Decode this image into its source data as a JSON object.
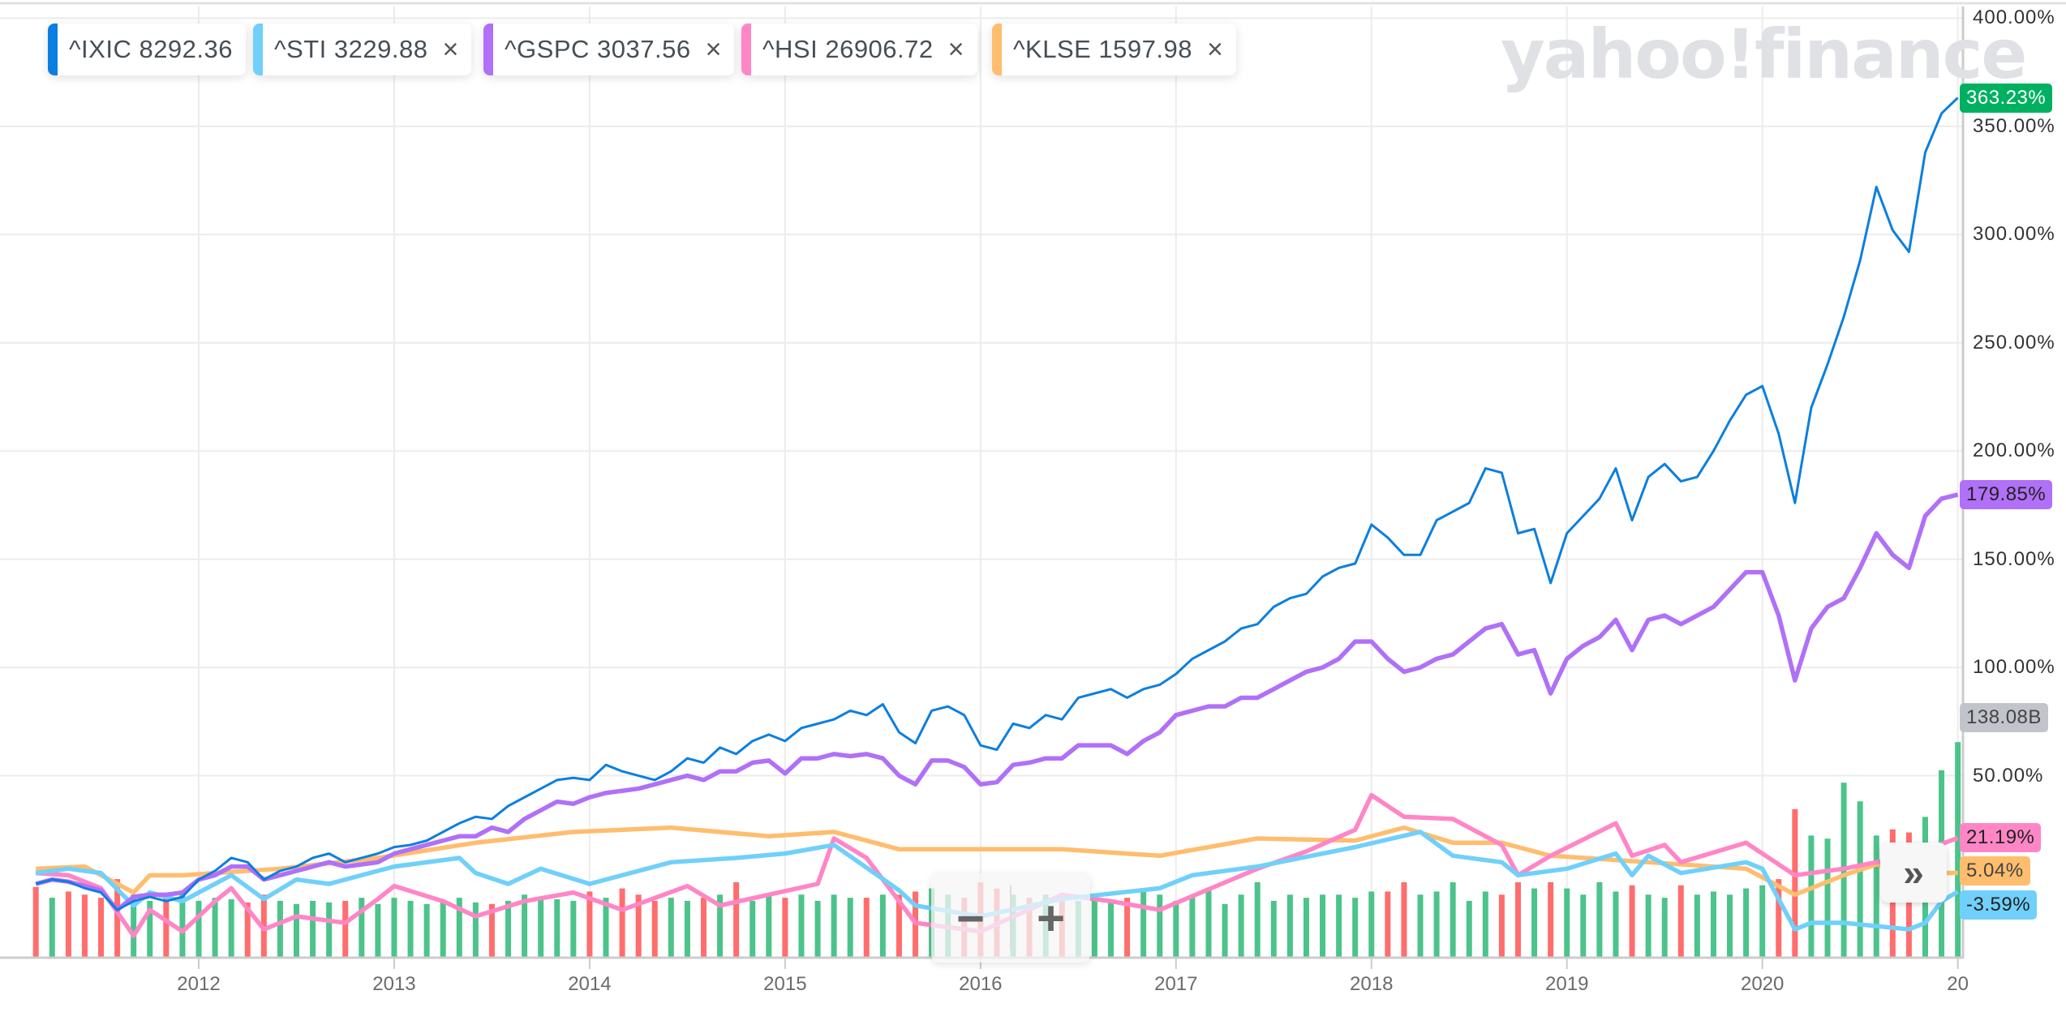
{
  "watermark": "yahoo!finance",
  "legend": [
    {
      "symbol": "^IXIC",
      "value": "8292.36",
      "color": "#0b7fe0",
      "closable": false
    },
    {
      "symbol": "^STI",
      "value": "3229.88",
      "color": "#70d0fa",
      "closable": true
    },
    {
      "symbol": "^GSPC",
      "value": "3037.56",
      "color": "#b070f7",
      "closable": true
    },
    {
      "symbol": "^HSI",
      "value": "26906.72",
      "color": "#ff86c6",
      "closable": true
    },
    {
      "symbol": "^KLSE",
      "value": "1597.98",
      "color": "#ffbd6e",
      "closable": true
    }
  ],
  "close_glyph": "×",
  "controls": {
    "zoom_out": "−",
    "zoom_in": "+",
    "forward": "»"
  },
  "badges": {
    "ixic": {
      "text": "363.23%",
      "color": "#00b061",
      "fg": "#ffffff"
    },
    "gspc": {
      "text": "179.85%",
      "color": "#b070f7",
      "fg": "#222222"
    },
    "volume": {
      "text": "138.08B",
      "color": "#c2c4cb",
      "fg": "#444444"
    },
    "hsi": {
      "text": "21.19%",
      "color": "#ff86c6",
      "fg": "#222222"
    },
    "klse": {
      "text": "5.04%",
      "color": "#ffbd6e",
      "fg": "#444444"
    },
    "sti": {
      "text": "-3.59%",
      "color": "#70d0fa",
      "fg": "#222222"
    }
  },
  "chart_data": {
    "type": "line",
    "title": "",
    "xlabel": "",
    "ylabel": "",
    "x_ticks": [
      "2012",
      "2013",
      "2014",
      "2015",
      "2016",
      "2017",
      "2018",
      "2019",
      "2020",
      "20"
    ],
    "y_ticks": [
      "400.00%",
      "350.00%",
      "300.00%",
      "250.00%",
      "200.00%",
      "150.00%",
      "100.00%",
      "50.00%"
    ],
    "y_tick_values": [
      400,
      350,
      300,
      250,
      200,
      150,
      100,
      50
    ],
    "ylim": [
      0,
      400
    ],
    "x_start": "2011-03",
    "x_end": "2021-01",
    "grid": true,
    "series": [
      {
        "name": "^IXIC",
        "key": "ixic",
        "color": "#0b7fe0",
        "monthly": [
          0,
          2,
          1,
          -2,
          -4,
          -12,
          -8,
          -6,
          -8,
          -6,
          2,
          6,
          12,
          10,
          2,
          6,
          8,
          12,
          14,
          10,
          12,
          14,
          17,
          18,
          20,
          24,
          28,
          31,
          30,
          36,
          40,
          44,
          48,
          49,
          48,
          55,
          52,
          50,
          48,
          52,
          58,
          56,
          63,
          60,
          66,
          69,
          66,
          72,
          74,
          76,
          80,
          78,
          83,
          70,
          65,
          80,
          82,
          78,
          64,
          62,
          74,
          72,
          78,
          76,
          86,
          88,
          90,
          86,
          90,
          92,
          97,
          104,
          108,
          112,
          118,
          120,
          128,
          132,
          134,
          142,
          146,
          148,
          166,
          160,
          152,
          152,
          168,
          172,
          176,
          192,
          190,
          162,
          164,
          139,
          162,
          170,
          178,
          192,
          168,
          188,
          194,
          186,
          188,
          200,
          214,
          226,
          230,
          208,
          176,
          220,
          240,
          262,
          288,
          322,
          302,
          292,
          338,
          356,
          363.23
        ]
      },
      {
        "name": "^GSPC",
        "key": "gspc",
        "color": "#b070f7",
        "monthly": [
          0,
          2,
          1,
          -1,
          -3,
          -12,
          -6,
          -5,
          -5,
          -4,
          2,
          4,
          8,
          8,
          2,
          4,
          6,
          8,
          10,
          8,
          9,
          10,
          14,
          16,
          18,
          20,
          22,
          22,
          26,
          24,
          30,
          34,
          38,
          37,
          40,
          42,
          43,
          44,
          46,
          48,
          50,
          48,
          52,
          52,
          56,
          57,
          51,
          58,
          58,
          60,
          59,
          60,
          58,
          50,
          46,
          57,
          57,
          54,
          46,
          47,
          55,
          56,
          58,
          58,
          64,
          64,
          64,
          60,
          66,
          70,
          78,
          80,
          82,
          82,
          86,
          86,
          90,
          94,
          98,
          100,
          104,
          112,
          112,
          104,
          98,
          100,
          104,
          106,
          112,
          118,
          120,
          106,
          108,
          88,
          104,
          110,
          114,
          122,
          108,
          122,
          124,
          120,
          124,
          128,
          136,
          144,
          144,
          124,
          94,
          118,
          128,
          132,
          146,
          162,
          152,
          146,
          170,
          178,
          179.85
        ]
      },
      {
        "name": "^STI",
        "key": "sti",
        "color": "#70d0fa",
        "points": [
          [
            "2011-03",
            5
          ],
          [
            "2011-05",
            7
          ],
          [
            "2011-07",
            5
          ],
          [
            "2011-09",
            -10
          ],
          [
            "2011-10",
            -4
          ],
          [
            "2011-12",
            -8
          ],
          [
            "2012-03",
            4
          ],
          [
            "2012-05",
            -7
          ],
          [
            "2012-07",
            2
          ],
          [
            "2012-09",
            0
          ],
          [
            "2013-01",
            8
          ],
          [
            "2013-05",
            12
          ],
          [
            "2013-06",
            5
          ],
          [
            "2013-08",
            0
          ],
          [
            "2013-10",
            7
          ],
          [
            "2014-01",
            0
          ],
          [
            "2014-06",
            10
          ],
          [
            "2014-10",
            12
          ],
          [
            "2015-01",
            14
          ],
          [
            "2015-04",
            18
          ],
          [
            "2015-08",
            -3
          ],
          [
            "2015-09",
            -10
          ],
          [
            "2016-01",
            -15
          ],
          [
            "2016-06",
            -7
          ],
          [
            "2016-12",
            -2
          ],
          [
            "2017-02",
            4
          ],
          [
            "2017-06",
            8
          ],
          [
            "2017-12",
            17
          ],
          [
            "2018-04",
            24
          ],
          [
            "2018-06",
            13
          ],
          [
            "2018-09",
            10
          ],
          [
            "2018-10",
            4
          ],
          [
            "2019-01",
            7
          ],
          [
            "2019-04",
            14
          ],
          [
            "2019-05",
            4
          ],
          [
            "2019-06",
            13
          ],
          [
            "2019-08",
            5
          ],
          [
            "2019-12",
            10
          ],
          [
            "2020-01",
            7
          ],
          [
            "2020-03",
            -21
          ],
          [
            "2020-04",
            -18
          ],
          [
            "2020-06",
            -18
          ],
          [
            "2020-10",
            -21
          ],
          [
            "2020-11",
            -18
          ],
          [
            "2020-12",
            -8
          ],
          [
            "2021-01",
            -3.59
          ]
        ]
      },
      {
        "name": "^HSI",
        "key": "hsi",
        "color": "#ff86c6",
        "points": [
          [
            "2011-03",
            5
          ],
          [
            "2011-05",
            4
          ],
          [
            "2011-07",
            -2
          ],
          [
            "2011-09",
            -24
          ],
          [
            "2011-10",
            -12
          ],
          [
            "2011-12",
            -22
          ],
          [
            "2012-02",
            -8
          ],
          [
            "2012-03",
            -2
          ],
          [
            "2012-05",
            -21
          ],
          [
            "2012-07",
            -15
          ],
          [
            "2012-10",
            -18
          ],
          [
            "2012-12",
            -7
          ],
          [
            "2013-01",
            -1
          ],
          [
            "2013-04",
            -8
          ],
          [
            "2013-06",
            -15
          ],
          [
            "2013-09",
            -8
          ],
          [
            "2013-12",
            -4
          ],
          [
            "2014-03",
            -12
          ],
          [
            "2014-07",
            -1
          ],
          [
            "2014-09",
            -10
          ],
          [
            "2014-12",
            -5
          ],
          [
            "2015-03",
            0
          ],
          [
            "2015-04",
            21
          ],
          [
            "2015-06",
            12
          ],
          [
            "2015-09",
            -18
          ],
          [
            "2016-01",
            -22
          ],
          [
            "2016-06",
            -5
          ],
          [
            "2016-09",
            -8
          ],
          [
            "2016-12",
            -12
          ],
          [
            "2017-06",
            7
          ],
          [
            "2017-09",
            15
          ],
          [
            "2017-12",
            25
          ],
          [
            "2018-01",
            41
          ],
          [
            "2018-03",
            31
          ],
          [
            "2018-06",
            30
          ],
          [
            "2018-09",
            18
          ],
          [
            "2018-10",
            4
          ],
          [
            "2018-12",
            13
          ],
          [
            "2019-04",
            28
          ],
          [
            "2019-05",
            13
          ],
          [
            "2019-07",
            18
          ],
          [
            "2019-08",
            10
          ],
          [
            "2019-12",
            19
          ],
          [
            "2020-01",
            14
          ],
          [
            "2020-03",
            4
          ],
          [
            "2020-06",
            7
          ],
          [
            "2020-10",
            13
          ],
          [
            "2021-01",
            21.19
          ]
        ]
      },
      {
        "name": "^KLSE",
        "key": "klse",
        "color": "#ffbd6e",
        "points": [
          [
            "2011-03",
            7
          ],
          [
            "2011-06",
            8
          ],
          [
            "2011-09",
            -4
          ],
          [
            "2011-10",
            4
          ],
          [
            "2011-12",
            4
          ],
          [
            "2012-06",
            7
          ],
          [
            "2012-12",
            12
          ],
          [
            "2013-06",
            19
          ],
          [
            "2013-12",
            24
          ],
          [
            "2014-06",
            26
          ],
          [
            "2014-12",
            22
          ],
          [
            "2015-04",
            24
          ],
          [
            "2015-08",
            16
          ],
          [
            "2015-12",
            16
          ],
          [
            "2016-06",
            16
          ],
          [
            "2016-12",
            13
          ],
          [
            "2017-06",
            21
          ],
          [
            "2017-12",
            20
          ],
          [
            "2018-03",
            26
          ],
          [
            "2018-06",
            19
          ],
          [
            "2018-09",
            19
          ],
          [
            "2018-12",
            13
          ],
          [
            "2019-06",
            10
          ],
          [
            "2019-12",
            7
          ],
          [
            "2020-03",
            -5
          ],
          [
            "2020-06",
            4
          ],
          [
            "2020-08",
            9
          ],
          [
            "2020-10",
            5
          ],
          [
            "2021-01",
            5.04
          ]
        ]
      }
    ],
    "volume": {
      "name": "Volume",
      "unit": "B",
      "up_color": "#4cc38a",
      "down_color": "#ff6d6d",
      "monthly": [
        45,
        38,
        42,
        40,
        38,
        50,
        40,
        36,
        38,
        40,
        36,
        38,
        37,
        35,
        40,
        36,
        34,
        36,
        35,
        36,
        38,
        34,
        38,
        36,
        34,
        36,
        38,
        35,
        34,
        36,
        40,
        38,
        37,
        36,
        42,
        38,
        44,
        40,
        36,
        38,
        36,
        38,
        40,
        48,
        36,
        40,
        38,
        40,
        36,
        40,
        38,
        38,
        40,
        40,
        42,
        44,
        40,
        38,
        48,
        44,
        40,
        38,
        40,
        36,
        36,
        38,
        36,
        38,
        44,
        40,
        36,
        38,
        44,
        34,
        40,
        48,
        36,
        40,
        38,
        40,
        40,
        38,
        42,
        42,
        48,
        40,
        42,
        48,
        36,
        42,
        40,
        48,
        44,
        48,
        44,
        40,
        48,
        42,
        46,
        40,
        38,
        46,
        40,
        42,
        40,
        44,
        46,
        50,
        95,
        78,
        76,
        112,
        100,
        78,
        82,
        80,
        90,
        120,
        138.08
      ]
    }
  }
}
